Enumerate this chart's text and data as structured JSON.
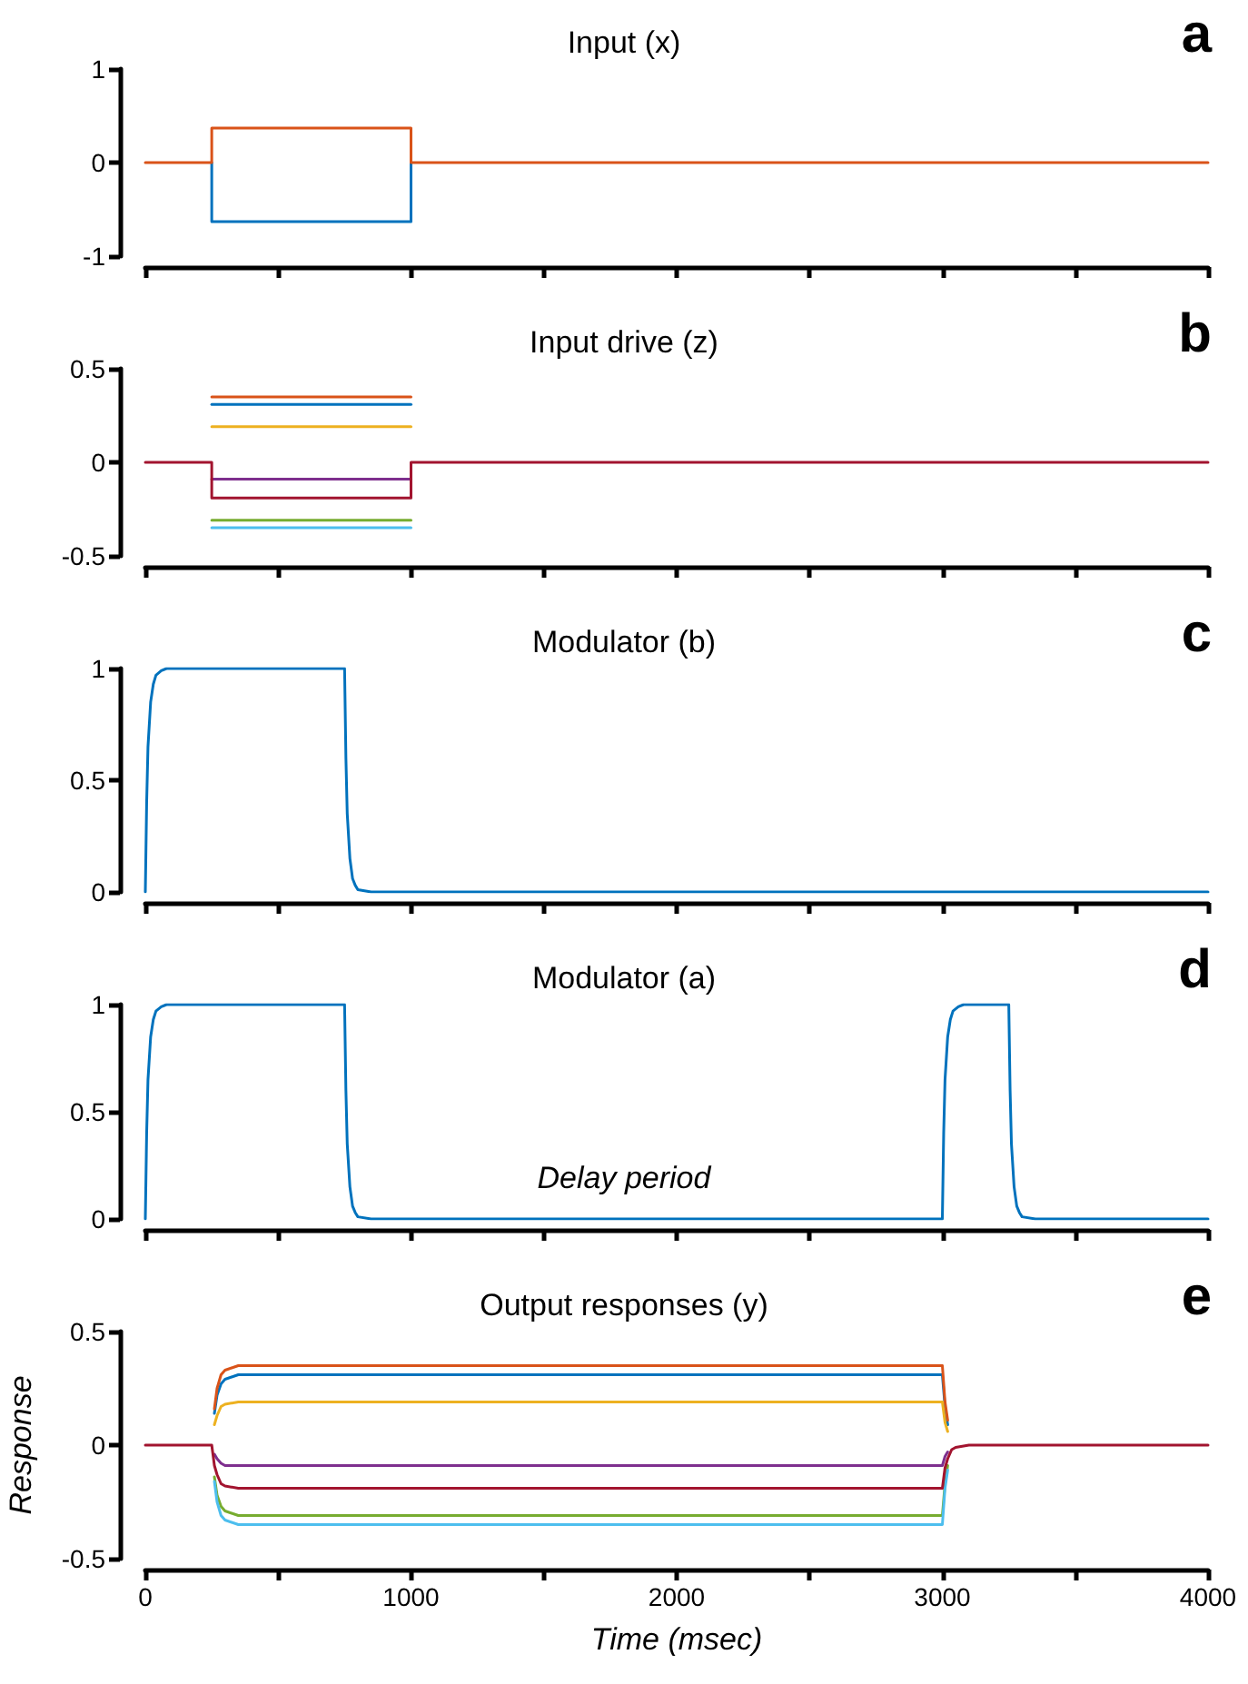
{
  "chart_data": [
    {
      "type": "line",
      "title": "Input (x)",
      "annotations": [
        "a"
      ],
      "xlim": [
        0,
        4000
      ],
      "xticks": [
        0,
        {
          "value": 500,
          "label": null
        },
        1000,
        {
          "value": 1500,
          "label": null
        },
        2000,
        {
          "value": 2500,
          "label": null
        },
        3000,
        {
          "value": 3500,
          "label": null
        },
        4000
      ],
      "ylim": [
        -1,
        1
      ],
      "yticks": [
        -1,
        0,
        1
      ],
      "tick_labels": "y",
      "x": [
        0,
        250,
        250,
        1000,
        1000,
        4000
      ],
      "series": [
        {
          "color": "#0072bd",
          "values": [
            null,
            0,
            -0.63,
            -0.63,
            0,
            null
          ]
        },
        {
          "color": "#d95319",
          "values": [
            0,
            0,
            0.37,
            0.37,
            0,
            0
          ]
        }
      ]
    },
    {
      "type": "line",
      "title": "Input drive (z)",
      "annotations": [
        "b"
      ],
      "xlim": [
        0,
        4000
      ],
      "xticks": [
        0,
        {
          "value": 500,
          "label": null
        },
        1000,
        {
          "value": 1500,
          "label": null
        },
        2000,
        {
          "value": 2500,
          "label": null
        },
        3000,
        {
          "value": 3500,
          "label": null
        },
        4000
      ],
      "ylim": [
        -0.5,
        0.5
      ],
      "yticks": [
        -0.5,
        0,
        0.5
      ],
      "tick_labels": "y",
      "x": [
        0,
        250,
        250,
        1000,
        1000,
        4000
      ],
      "series": [
        {
          "color": "#0072bd",
          "values": [
            null,
            null,
            0.31,
            0.31,
            null,
            null
          ]
        },
        {
          "color": "#d95319",
          "values": [
            null,
            null,
            0.35,
            0.35,
            null,
            null
          ]
        },
        {
          "color": "#edb120",
          "values": [
            null,
            null,
            0.19,
            0.19,
            null,
            null
          ]
        },
        {
          "color": "#7e2f8e",
          "values": [
            null,
            null,
            -0.09,
            -0.09,
            null,
            null
          ]
        },
        {
          "color": "#77ac30",
          "values": [
            null,
            null,
            -0.31,
            -0.31,
            null,
            null
          ]
        },
        {
          "color": "#4dbeee",
          "values": [
            null,
            null,
            -0.35,
            -0.35,
            null,
            null
          ]
        },
        {
          "color": "#a2142f",
          "values": [
            0,
            0,
            -0.19,
            -0.19,
            0,
            0
          ]
        }
      ]
    },
    {
      "type": "line",
      "title": "Modulator (b)",
      "annotations": [
        "c"
      ],
      "xlim": [
        0,
        4000
      ],
      "xticks": [
        0,
        {
          "value": 500,
          "label": null
        },
        1000,
        {
          "value": 1500,
          "label": null
        },
        2000,
        {
          "value": 2500,
          "label": null
        },
        3000,
        {
          "value": 3500,
          "label": null
        },
        4000
      ],
      "ylim": [
        0,
        1
      ],
      "yticks": [
        0,
        0.5,
        1
      ],
      "tick_labels": "y",
      "x": [
        0,
        5,
        10,
        20,
        30,
        40,
        60,
        80,
        750,
        755,
        760,
        770,
        780,
        790,
        800,
        850,
        4000
      ],
      "series": [
        {
          "color": "#0072bd",
          "values": [
            0,
            0.4,
            0.65,
            0.85,
            0.93,
            0.97,
            0.99,
            1,
            1,
            0.6,
            0.35,
            0.15,
            0.06,
            0.03,
            0.01,
            0,
            0
          ]
        }
      ]
    },
    {
      "type": "line",
      "title": "Modulator (a)",
      "annotations": [
        "d",
        "Delay period"
      ],
      "xlim": [
        0,
        4000
      ],
      "xticks": [
        0,
        {
          "value": 500,
          "label": null
        },
        1000,
        {
          "value": 1500,
          "label": null
        },
        2000,
        {
          "value": 2500,
          "label": null
        },
        3000,
        {
          "value": 3500,
          "label": null
        },
        4000
      ],
      "ylim": [
        0,
        1
      ],
      "yticks": [
        0,
        0.5,
        1
      ],
      "tick_labels": "y",
      "x": [
        0,
        5,
        10,
        20,
        30,
        40,
        60,
        80,
        750,
        755,
        760,
        770,
        780,
        790,
        800,
        850,
        3000,
        3005,
        3010,
        3020,
        3030,
        3040,
        3060,
        3080,
        3250,
        3255,
        3260,
        3270,
        3280,
        3290,
        3300,
        3350,
        4000
      ],
      "series": [
        {
          "color": "#0072bd",
          "values": [
            0,
            0.4,
            0.65,
            0.85,
            0.93,
            0.97,
            0.99,
            1,
            1,
            0.6,
            0.35,
            0.15,
            0.06,
            0.03,
            0.01,
            0,
            0,
            0.4,
            0.65,
            0.85,
            0.93,
            0.97,
            0.99,
            1,
            1,
            0.6,
            0.35,
            0.15,
            0.06,
            0.03,
            0.01,
            0,
            0
          ]
        }
      ]
    },
    {
      "type": "line",
      "title": "Output responses (y)",
      "annotations": [
        "e"
      ],
      "xlabel": "Time (msec)",
      "ylabel": "Response",
      "xlim": [
        0,
        4000
      ],
      "xticks": [
        0,
        {
          "value": 500,
          "label": null
        },
        1000,
        {
          "value": 1500,
          "label": null
        },
        2000,
        {
          "value": 2500,
          "label": null
        },
        3000,
        {
          "value": 3500,
          "label": null
        },
        4000
      ],
      "ylim": [
        -0.5,
        0.5
      ],
      "yticks": [
        -0.5,
        0,
        0.5
      ],
      "x": [
        0,
        250,
        260,
        270,
        285,
        300,
        350,
        3000,
        3010,
        3020,
        3035,
        3050,
        3100,
        4000
      ],
      "series": [
        {
          "color": "#0072bd",
          "values": [
            null,
            null,
            0.14,
            0.22,
            0.27,
            0.29,
            0.31,
            0.31,
            0.17,
            0.09,
            null,
            null,
            null,
            null
          ]
        },
        {
          "color": "#d95319",
          "values": [
            null,
            null,
            0.16,
            0.25,
            0.31,
            0.33,
            0.35,
            0.35,
            0.19,
            0.11,
            null,
            null,
            null,
            null
          ]
        },
        {
          "color": "#edb120",
          "values": [
            null,
            null,
            0.09,
            0.13,
            0.17,
            0.18,
            0.19,
            0.19,
            0.1,
            0.06,
            null,
            null,
            null,
            null
          ]
        },
        {
          "color": "#7e2f8e",
          "values": [
            null,
            null,
            -0.04,
            -0.06,
            -0.08,
            -0.09,
            -0.09,
            -0.09,
            -0.05,
            -0.03,
            null,
            null,
            null,
            null
          ]
        },
        {
          "color": "#77ac30",
          "values": [
            null,
            null,
            -0.14,
            -0.22,
            -0.27,
            -0.29,
            -0.31,
            -0.31,
            -0.17,
            -0.09,
            null,
            null,
            null,
            null
          ]
        },
        {
          "color": "#4dbeee",
          "values": [
            null,
            null,
            -0.16,
            -0.25,
            -0.31,
            -0.33,
            -0.35,
            -0.35,
            -0.19,
            -0.11,
            null,
            null,
            null,
            null
          ]
        },
        {
          "color": "#a2142f",
          "values": [
            0,
            0,
            -0.09,
            -0.13,
            -0.17,
            -0.18,
            -0.19,
            -0.19,
            -0.1,
            -0.06,
            -0.02,
            -0.01,
            0,
            0
          ]
        }
      ]
    }
  ]
}
